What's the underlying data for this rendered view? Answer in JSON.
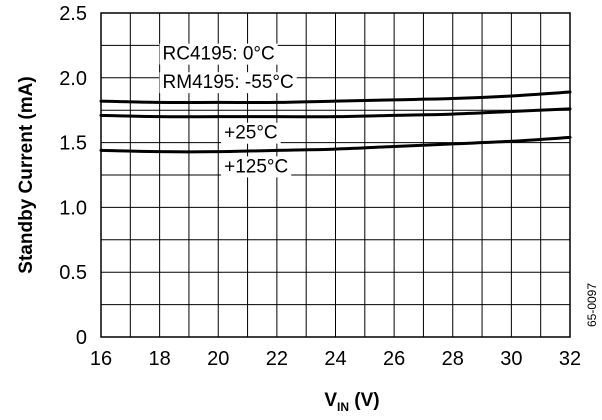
{
  "chart_data": {
    "type": "line",
    "title": "",
    "xlabel": "V",
    "xlabel_sub": "IN",
    "xlabel_unit": " (V)",
    "ylabel": "Standby Current (mA)",
    "xlim": [
      16,
      32
    ],
    "ylim": [
      0,
      2.5
    ],
    "x_ticks": [
      16,
      18,
      20,
      22,
      24,
      26,
      28,
      30,
      32
    ],
    "x_tick_labels": [
      "16",
      "18",
      "20",
      "22",
      "24",
      "26",
      "28",
      "30",
      "32"
    ],
    "y_ticks": [
      0,
      0.5,
      1.0,
      1.5,
      2.0,
      2.5
    ],
    "y_tick_labels": [
      "0",
      "0.5",
      "1.0",
      "1.5",
      "2.0",
      "2.5"
    ],
    "grid": true,
    "series": [
      {
        "x": [
          16,
          18,
          20,
          22,
          24,
          26,
          28,
          30,
          32
        ],
        "y": [
          1.82,
          1.81,
          1.81,
          1.81,
          1.82,
          1.83,
          1.84,
          1.86,
          1.89
        ]
      },
      {
        "x": [
          16,
          18,
          20,
          22,
          24,
          26,
          28,
          30,
          32
        ],
        "y": [
          1.71,
          1.7,
          1.7,
          1.7,
          1.7,
          1.71,
          1.72,
          1.74,
          1.76
        ]
      },
      {
        "x": [
          16,
          18,
          20,
          22,
          24,
          26,
          28,
          30,
          32
        ],
        "y": [
          1.44,
          1.43,
          1.43,
          1.44,
          1.45,
          1.47,
          1.49,
          1.51,
          1.54
        ]
      }
    ],
    "annotations": [
      {
        "text": "RC4195: 0°C",
        "x": 18.1,
        "y": 2.14
      },
      {
        "text": "RM4195: -55°C",
        "x": 18.1,
        "y": 1.92
      },
      {
        "text": "+25°C",
        "x": 20.2,
        "y": 1.53
      },
      {
        "text": "+125°C",
        "x": 20.2,
        "y": 1.27
      }
    ],
    "figure_code": "65-0097"
  }
}
